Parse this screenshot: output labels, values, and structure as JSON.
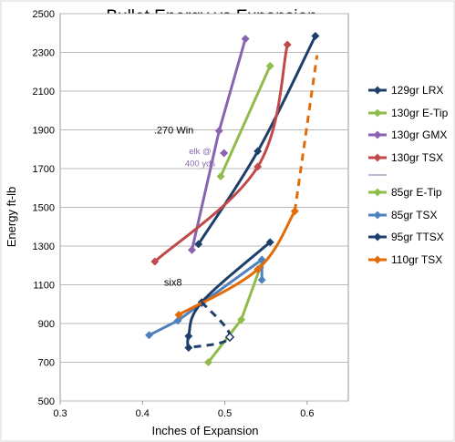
{
  "chart_data": {
    "type": "line",
    "title": "Bullet Energy vs Expansion",
    "xlabel": "Inches of Expansion",
    "ylabel": "Energy ft-lb",
    "xlim": [
      0.3,
      0.65
    ],
    "ylim": [
      500,
      2500
    ],
    "x_ticks": [
      0.3,
      0.4,
      0.5,
      0.6
    ],
    "x_tick_labels": [
      "0.3",
      "0.4",
      "0.5",
      "0.6"
    ],
    "y_ticks": [
      500,
      700,
      900,
      1100,
      1300,
      1500,
      1700,
      1900,
      2100,
      2300,
      2500
    ],
    "y_tick_labels": [
      "500",
      "700",
      "900",
      "1100",
      "1300",
      "1500",
      "1700",
      "1900",
      "2100",
      "2300",
      "2500"
    ],
    "grid": "horizontal",
    "legend_position": "right",
    "series": [
      {
        "name": "129gr LRX",
        "color": "#1f3f6b",
        "dashed": false,
        "smooth": true,
        "points": [
          [
            0.468,
            1310
          ],
          [
            0.54,
            1790
          ],
          [
            0.61,
            2385
          ]
        ]
      },
      {
        "name": "130gr E-Tip",
        "color": "#8fbc4a",
        "dashed": false,
        "smooth": false,
        "points": [
          [
            0.495,
            1660
          ],
          [
            0.555,
            2230
          ]
        ]
      },
      {
        "name": "130gr GMX",
        "color": "#8a63b0",
        "dashed": false,
        "smooth": false,
        "points": [
          [
            0.46,
            1280
          ],
          [
            0.493,
            1895
          ],
          [
            0.525,
            2370
          ]
        ]
      },
      {
        "name": "130gr TSX",
        "color": "#c0494a",
        "dashed": false,
        "smooth": true,
        "points": [
          [
            0.415,
            1220
          ],
          [
            0.54,
            1710
          ],
          [
            0.576,
            2340
          ]
        ]
      },
      {
        "name": "85gr E-Tip",
        "color": "#8fbc4a",
        "dashed": false,
        "smooth": false,
        "points": [
          [
            0.48,
            700
          ],
          [
            0.52,
            920
          ],
          [
            0.543,
            1190
          ]
        ]
      },
      {
        "name": "85gr TSX",
        "color": "#4f81bd",
        "dashed": false,
        "smooth": false,
        "points": [
          [
            0.408,
            840
          ],
          [
            0.443,
            915
          ],
          [
            0.472,
            1005
          ],
          [
            0.545,
            1230
          ],
          [
            0.545,
            1125
          ]
        ]
      },
      {
        "name": "95gr TTSX",
        "color": "#1f3f6b",
        "dashed": false,
        "smooth": true,
        "points": [
          [
            0.555,
            1320
          ],
          [
            0.472,
            1010
          ],
          [
            0.456,
            835
          ],
          [
            0.456,
            775
          ]
        ]
      },
      {
        "name": "110gr TSX",
        "color": "#e36c0a",
        "dashed": false,
        "smooth": true,
        "points": [
          [
            0.444,
            945
          ],
          [
            0.54,
            1180
          ],
          [
            0.585,
            1480
          ]
        ]
      }
    ],
    "extra_segments": [
      {
        "of": "95gr TTSX",
        "color": "#1f3f6b",
        "dashed": true,
        "open_marker": true,
        "points": [
          [
            0.472,
            1010
          ],
          [
            0.506,
            830
          ],
          [
            0.456,
            775
          ]
        ]
      },
      {
        "of": "110gr TSX",
        "color": "#e36c0a",
        "dashed": true,
        "points": [
          [
            0.585,
            1480
          ],
          [
            0.612,
            2285
          ]
        ]
      }
    ],
    "purple_extra_point": {
      "color": "#8a63b0",
      "point": [
        0.499,
        1780
      ]
    },
    "annotations": [
      {
        "text": ".270 Win",
        "x": 0.438,
        "y": 1900
      },
      {
        "text": "six8",
        "x": 0.437,
        "y": 1115
      },
      {
        "text": "elk @",
        "x": 0.47,
        "y": 1795,
        "color": "#8a6bb0"
      },
      {
        "text": "400 yds",
        "x": 0.47,
        "y": 1730,
        "color": "#8a6bb0"
      }
    ]
  }
}
